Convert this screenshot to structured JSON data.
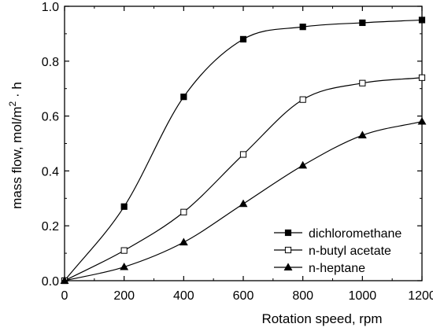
{
  "chart_data": {
    "type": "line",
    "title": "",
    "xlabel": "Rotation speed, rpm",
    "ylabel": {
      "main": "mass flow, mol/m",
      "sup": "2",
      "tail": " · h"
    },
    "xlim": [
      0,
      1200
    ],
    "ylim": [
      0.0,
      1.0
    ],
    "x_ticks": [
      0,
      200,
      400,
      600,
      800,
      1000,
      1200
    ],
    "y_ticks": [
      0.0,
      0.2,
      0.4,
      0.6,
      0.8,
      1.0
    ],
    "x_tick_labels": [
      "0",
      "200",
      "400",
      "600",
      "800",
      "1000",
      "1200"
    ],
    "y_tick_labels": [
      "0.0",
      "0.2",
      "0.4",
      "0.6",
      "0.8",
      "1.0"
    ],
    "grid": false,
    "legend_position": "bottom-right",
    "series": [
      {
        "name": "dichloromethane",
        "marker": "filled-square",
        "x": [
          0,
          200,
          400,
          600,
          800,
          1000,
          1200
        ],
        "y": [
          0.0,
          0.27,
          0.67,
          0.88,
          0.925,
          0.94,
          0.95
        ]
      },
      {
        "name": "n-butyl acetate",
        "marker": "open-square",
        "x": [
          0,
          200,
          400,
          600,
          800,
          1000,
          1200
        ],
        "y": [
          0.0,
          0.11,
          0.25,
          0.46,
          0.66,
          0.72,
          0.74
        ]
      },
      {
        "name": "n-heptane",
        "marker": "filled-triangle",
        "x": [
          0,
          200,
          400,
          600,
          800,
          1000,
          1200
        ],
        "y": [
          0.0,
          0.05,
          0.14,
          0.28,
          0.42,
          0.53,
          0.58
        ]
      }
    ],
    "colors": {
      "line": "#000000",
      "background": "#ffffff"
    }
  }
}
